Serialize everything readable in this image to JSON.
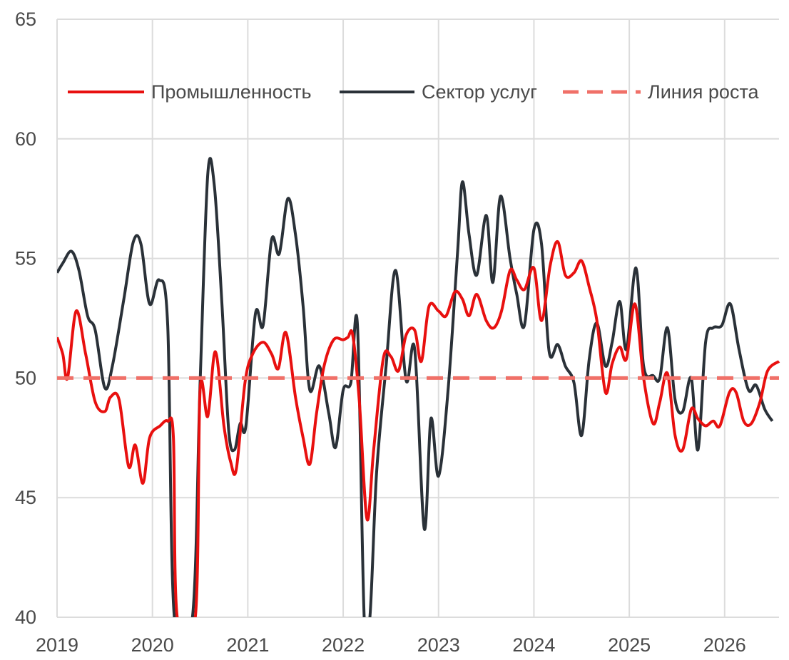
{
  "chart_data": {
    "type": "line",
    "title": "",
    "xlabel": "",
    "ylabel": "",
    "xlim": [
      2019.0,
      2026.57
    ],
    "ylim": [
      40,
      65
    ],
    "y_ticks": [
      40,
      45,
      50,
      55,
      60,
      65
    ],
    "x_ticks": [
      2019,
      2020,
      2021,
      2022,
      2023,
      2024,
      2025,
      2026
    ],
    "grid": "on",
    "legend_position": "top",
    "series": [
      {
        "name": "Промышленность",
        "color": "#e8100f",
        "style": "solid",
        "points": [
          [
            2019.0,
            51.7
          ],
          [
            2019.06,
            51.0
          ],
          [
            2019.11,
            50.0
          ],
          [
            2019.2,
            52.8
          ],
          [
            2019.3,
            51.0
          ],
          [
            2019.4,
            49.0
          ],
          [
            2019.5,
            48.6
          ],
          [
            2019.56,
            49.2
          ],
          [
            2019.65,
            49.1
          ],
          [
            2019.75,
            46.3
          ],
          [
            2019.82,
            47.2
          ],
          [
            2019.9,
            45.6
          ],
          [
            2019.97,
            47.5
          ],
          [
            2020.08,
            48.0
          ],
          [
            2020.16,
            48.2
          ],
          [
            2020.22,
            47.5
          ],
          [
            2020.26,
            40.0
          ],
          [
            2020.45,
            40.0
          ],
          [
            2020.5,
            49.5
          ],
          [
            2020.58,
            48.4
          ],
          [
            2020.66,
            51.1
          ],
          [
            2020.75,
            48.0
          ],
          [
            2020.82,
            46.5
          ],
          [
            2020.88,
            46.2
          ],
          [
            2020.97,
            49.8
          ],
          [
            2021.05,
            51.0
          ],
          [
            2021.16,
            51.5
          ],
          [
            2021.25,
            51.0
          ],
          [
            2021.32,
            50.4
          ],
          [
            2021.4,
            51.9
          ],
          [
            2021.5,
            49.2
          ],
          [
            2021.58,
            47.5
          ],
          [
            2021.65,
            46.4
          ],
          [
            2021.72,
            48.5
          ],
          [
            2021.8,
            50.5
          ],
          [
            2021.9,
            51.6
          ],
          [
            2022.0,
            51.6
          ],
          [
            2022.05,
            51.7
          ],
          [
            2022.1,
            51.8
          ],
          [
            2022.17,
            49.0
          ],
          [
            2022.25,
            44.1
          ],
          [
            2022.32,
            47.0
          ],
          [
            2022.42,
            50.8
          ],
          [
            2022.5,
            50.9
          ],
          [
            2022.58,
            50.3
          ],
          [
            2022.66,
            51.8
          ],
          [
            2022.75,
            52.0
          ],
          [
            2022.82,
            50.7
          ],
          [
            2022.9,
            53.0
          ],
          [
            2023.0,
            52.8
          ],
          [
            2023.08,
            52.6
          ],
          [
            2023.17,
            53.6
          ],
          [
            2023.25,
            53.3
          ],
          [
            2023.32,
            52.6
          ],
          [
            2023.4,
            53.5
          ],
          [
            2023.5,
            52.4
          ],
          [
            2023.58,
            52.1
          ],
          [
            2023.66,
            52.8
          ],
          [
            2023.75,
            54.5
          ],
          [
            2023.82,
            54.1
          ],
          [
            2023.9,
            53.7
          ],
          [
            2024.0,
            54.6
          ],
          [
            2024.08,
            52.4
          ],
          [
            2024.17,
            54.7
          ],
          [
            2024.25,
            55.7
          ],
          [
            2024.33,
            54.3
          ],
          [
            2024.42,
            54.4
          ],
          [
            2024.5,
            54.9
          ],
          [
            2024.58,
            53.8
          ],
          [
            2024.66,
            52.4
          ],
          [
            2024.75,
            49.4
          ],
          [
            2024.82,
            50.6
          ],
          [
            2024.9,
            51.3
          ],
          [
            2024.97,
            50.8
          ],
          [
            2025.06,
            53.1
          ],
          [
            2025.15,
            50.0
          ],
          [
            2025.25,
            48.1
          ],
          [
            2025.32,
            49.0
          ],
          [
            2025.4,
            50.2
          ],
          [
            2025.48,
            47.6
          ],
          [
            2025.56,
            47.0
          ],
          [
            2025.65,
            48.7
          ],
          [
            2025.72,
            48.3
          ],
          [
            2025.8,
            48.0
          ],
          [
            2025.88,
            48.2
          ],
          [
            2025.95,
            48.0
          ],
          [
            2026.05,
            49.4
          ],
          [
            2026.12,
            49.4
          ],
          [
            2026.2,
            48.2
          ],
          [
            2026.28,
            48.1
          ],
          [
            2026.37,
            49.0
          ],
          [
            2026.45,
            50.3
          ],
          [
            2026.57,
            50.7
          ]
        ]
      },
      {
        "name": "Сектор услуг",
        "color": "#2a3138",
        "style": "solid",
        "points": [
          [
            2019.0,
            54.4
          ],
          [
            2019.06,
            54.8
          ],
          [
            2019.15,
            55.3
          ],
          [
            2019.23,
            54.5
          ],
          [
            2019.32,
            52.6
          ],
          [
            2019.4,
            52.0
          ],
          [
            2019.5,
            49.6
          ],
          [
            2019.58,
            50.5
          ],
          [
            2019.7,
            53.3
          ],
          [
            2019.8,
            55.7
          ],
          [
            2019.88,
            55.6
          ],
          [
            2019.97,
            53.1
          ],
          [
            2020.07,
            54.1
          ],
          [
            2020.16,
            52.2
          ],
          [
            2020.23,
            40.0
          ],
          [
            2020.42,
            40.0
          ],
          [
            2020.5,
            49.8
          ],
          [
            2020.58,
            58.5
          ],
          [
            2020.65,
            58.0
          ],
          [
            2020.73,
            53.0
          ],
          [
            2020.8,
            47.8
          ],
          [
            2020.86,
            47.0
          ],
          [
            2020.92,
            48.1
          ],
          [
            2020.98,
            48.0
          ],
          [
            2021.08,
            52.7
          ],
          [
            2021.16,
            52.2
          ],
          [
            2021.25,
            55.8
          ],
          [
            2021.33,
            55.2
          ],
          [
            2021.42,
            57.5
          ],
          [
            2021.5,
            56.0
          ],
          [
            2021.58,
            53.0
          ],
          [
            2021.65,
            49.5
          ],
          [
            2021.75,
            50.5
          ],
          [
            2021.85,
            48.5
          ],
          [
            2021.92,
            47.1
          ],
          [
            2022.0,
            49.5
          ],
          [
            2022.08,
            49.8
          ],
          [
            2022.15,
            52.2
          ],
          [
            2022.22,
            40.0
          ],
          [
            2022.28,
            40.0
          ],
          [
            2022.35,
            46.0
          ],
          [
            2022.45,
            50.5
          ],
          [
            2022.55,
            54.5
          ],
          [
            2022.66,
            49.9
          ],
          [
            2022.75,
            51.2
          ],
          [
            2022.85,
            43.7
          ],
          [
            2022.92,
            48.3
          ],
          [
            2023.0,
            45.9
          ],
          [
            2023.1,
            49.5
          ],
          [
            2023.2,
            55.3
          ],
          [
            2023.25,
            58.2
          ],
          [
            2023.32,
            56.0
          ],
          [
            2023.4,
            54.3
          ],
          [
            2023.5,
            56.8
          ],
          [
            2023.57,
            54.0
          ],
          [
            2023.65,
            57.6
          ],
          [
            2023.75,
            55.0
          ],
          [
            2023.82,
            53.5
          ],
          [
            2023.9,
            52.2
          ],
          [
            2024.0,
            56.2
          ],
          [
            2024.08,
            55.6
          ],
          [
            2024.16,
            51.1
          ],
          [
            2024.25,
            51.4
          ],
          [
            2024.33,
            50.5
          ],
          [
            2024.42,
            49.8
          ],
          [
            2024.5,
            47.6
          ],
          [
            2024.58,
            50.8
          ],
          [
            2024.66,
            52.3
          ],
          [
            2024.75,
            50.5
          ],
          [
            2024.82,
            51.5
          ],
          [
            2024.9,
            53.2
          ],
          [
            2024.97,
            51.2
          ],
          [
            2025.07,
            54.6
          ],
          [
            2025.15,
            50.5
          ],
          [
            2025.25,
            50.1
          ],
          [
            2025.32,
            50.0
          ],
          [
            2025.4,
            52.1
          ],
          [
            2025.48,
            49.1
          ],
          [
            2025.56,
            48.6
          ],
          [
            2025.65,
            50.0
          ],
          [
            2025.72,
            47.0
          ],
          [
            2025.8,
            51.5
          ],
          [
            2025.88,
            52.1
          ],
          [
            2025.97,
            52.2
          ],
          [
            2026.06,
            53.1
          ],
          [
            2026.15,
            51.2
          ],
          [
            2026.25,
            49.5
          ],
          [
            2026.33,
            49.7
          ],
          [
            2026.42,
            48.7
          ],
          [
            2026.5,
            48.2
          ]
        ]
      },
      {
        "name": "Линия роста",
        "color": "#f07068",
        "style": "dashed",
        "points": [
          [
            2019.0,
            50.0
          ],
          [
            2026.57,
            50.0
          ]
        ]
      }
    ]
  }
}
